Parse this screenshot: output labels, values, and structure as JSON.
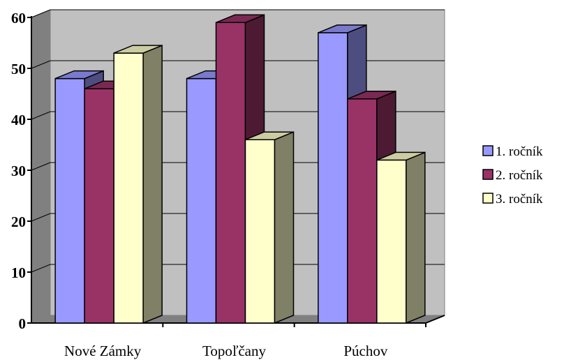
{
  "chart_data": {
    "type": "bar",
    "title": "",
    "xlabel": "",
    "ylabel": "",
    "categories": [
      "Nové Zámky",
      "Topoľčany",
      "Púchov"
    ],
    "series": [
      {
        "name": "1. ročník",
        "values": [
          48,
          48,
          57
        ],
        "color": "#9999ff"
      },
      {
        "name": "2. ročník",
        "values": [
          46,
          59,
          44
        ],
        "color": "#993366"
      },
      {
        "name": "3. ročník",
        "values": [
          53,
          36,
          32
        ],
        "color": "#ffffcc"
      }
    ],
    "ylim": [
      0,
      60
    ],
    "yticks": [
      "0",
      "10",
      "20",
      "30",
      "40",
      "50",
      "60"
    ],
    "grid": true,
    "legend": "right",
    "style": "3d-clustered-column",
    "wall_color": "#c0c0c0",
    "floor_color": "#808080"
  }
}
